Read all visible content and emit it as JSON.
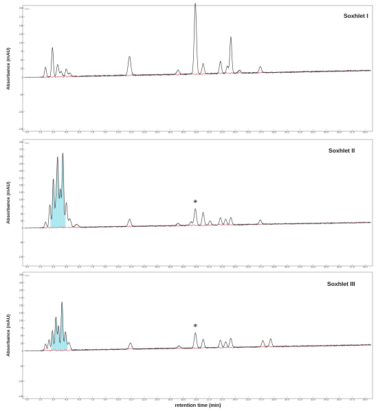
{
  "figure": {
    "xlabel": "retention time  (min)",
    "marker_symbol": "*"
  },
  "chart_data": [
    {
      "type": "line",
      "title": "Soxhlet I",
      "ylabel": "Absorbance (mAU)",
      "corner_label": "mAU",
      "xlim": [
        0,
        40
      ],
      "ylim": [
        -150,
        200
      ],
      "x_ticks": [
        "0.0",
        "1.5",
        "3.0",
        "4.5",
        "6.0",
        "7.5",
        "9.0",
        "10.5",
        "12.0",
        "13.5",
        "15.0",
        "16.5",
        "18.0",
        "19.5",
        "21.0",
        "22.5",
        "24.0",
        "25.5",
        "27.0",
        "28.5",
        "30.0",
        "31.5",
        "33.0",
        "34.5",
        "36.0",
        "37.5",
        "39.0"
      ],
      "y_ticks": [
        {
          "v": -150,
          "label": "-150"
        },
        {
          "v": -100,
          "label": "-100"
        },
        {
          "v": -50,
          "label": "-50"
        },
        {
          "v": 0,
          "label": "0"
        },
        {
          "v": 25,
          "label": "25"
        },
        {
          "v": 50,
          "label": "50"
        },
        {
          "v": 75,
          "label": "75"
        },
        {
          "v": 100,
          "label": "100"
        },
        {
          "v": 125,
          "label": "125"
        },
        {
          "v": 150,
          "label": "150"
        },
        {
          "v": 175,
          "label": "175"
        },
        {
          "v": 200,
          "label": "200"
        }
      ],
      "baseline": {
        "start": 0,
        "end": 20
      },
      "peaks": [
        {
          "rt": 2.4,
          "height": 28,
          "width": 0.1
        },
        {
          "rt": 3.2,
          "height": 85,
          "width": 0.1
        },
        {
          "rt": 3.8,
          "height": 35,
          "width": 0.12
        },
        {
          "rt": 4.2,
          "height": 15,
          "width": 0.12
        },
        {
          "rt": 4.8,
          "height": 22,
          "width": 0.12
        },
        {
          "rt": 5.2,
          "height": 10,
          "width": 0.12
        },
        {
          "rt": 12.1,
          "height": 55,
          "width": 0.15
        },
        {
          "rt": 17.7,
          "height": 12,
          "width": 0.15
        },
        {
          "rt": 19.7,
          "height": 205,
          "width": 0.13
        },
        {
          "rt": 20.6,
          "height": 30,
          "width": 0.12
        },
        {
          "rt": 22.6,
          "height": 35,
          "width": 0.12
        },
        {
          "rt": 23.4,
          "height": 20,
          "width": 0.12
        },
        {
          "rt": 23.8,
          "height": 105,
          "width": 0.11
        },
        {
          "rt": 24.8,
          "height": 8,
          "width": 0.15
        },
        {
          "rt": 27.2,
          "height": 18,
          "width": 0.13
        }
      ],
      "starred_rt": 19.7
    },
    {
      "type": "line",
      "title": "Soxhlet II",
      "ylabel": "Absorbance (mAU)",
      "corner_label": "mAU",
      "xlim": [
        0,
        40
      ],
      "ylim": [
        -125,
        300
      ],
      "x_ticks": [
        "0.0",
        "1.5",
        "3.0",
        "4.5",
        "6.0",
        "7.5",
        "9.0",
        "10.5",
        "12.0",
        "13.5",
        "15.0",
        "16.5",
        "18.0",
        "19.5",
        "21.0",
        "22.5",
        "24.0",
        "25.5",
        "27.0",
        "28.5",
        "30.0",
        "31.5",
        "33.0",
        "34.5",
        "36.0",
        "37.5",
        "39.0"
      ],
      "y_ticks": [
        {
          "v": -100,
          "label": "-100"
        },
        {
          "v": -50,
          "label": "-50"
        },
        {
          "v": 0,
          "label": "0"
        },
        {
          "v": 25,
          "label": "25"
        },
        {
          "v": 50,
          "label": "50"
        },
        {
          "v": 75,
          "label": "75"
        },
        {
          "v": 100,
          "label": "100"
        },
        {
          "v": 125,
          "label": "125"
        },
        {
          "v": 150,
          "label": "150"
        },
        {
          "v": 175,
          "label": "175"
        },
        {
          "v": 200,
          "label": "200"
        },
        {
          "v": 225,
          "label": "225"
        },
        {
          "v": 250,
          "label": "250"
        },
        {
          "v": 275,
          "label": "275"
        },
        {
          "v": 300,
          "label": "300"
        }
      ],
      "baseline": {
        "start": 0,
        "end": 20
      },
      "peaks": [
        {
          "rt": 2.4,
          "height": 20,
          "width": 0.1
        },
        {
          "rt": 2.9,
          "height": 80,
          "width": 0.1
        },
        {
          "rt": 3.3,
          "height": 170,
          "width": 0.1
        },
        {
          "rt": 3.6,
          "height": 80,
          "width": 0.09
        },
        {
          "rt": 3.8,
          "height": 240,
          "width": 0.1
        },
        {
          "rt": 4.1,
          "height": 130,
          "width": 0.09
        },
        {
          "rt": 4.4,
          "height": 260,
          "width": 0.1
        },
        {
          "rt": 4.8,
          "height": 85,
          "width": 0.11
        },
        {
          "rt": 5.2,
          "height": 30,
          "width": 0.15
        },
        {
          "rt": 6.0,
          "height": 10,
          "width": 0.2
        },
        {
          "rt": 12.1,
          "height": 25,
          "width": 0.15
        },
        {
          "rt": 17.7,
          "height": 8,
          "width": 0.15
        },
        {
          "rt": 19.2,
          "height": 12,
          "width": 0.15
        },
        {
          "rt": 19.7,
          "height": 58,
          "width": 0.13
        },
        {
          "rt": 20.6,
          "height": 45,
          "width": 0.12
        },
        {
          "rt": 21.4,
          "height": 15,
          "width": 0.12
        },
        {
          "rt": 22.6,
          "height": 25,
          "width": 0.12
        },
        {
          "rt": 23.2,
          "height": 20,
          "width": 0.12
        },
        {
          "rt": 23.8,
          "height": 25,
          "width": 0.12
        },
        {
          "rt": 27.2,
          "height": 15,
          "width": 0.13
        }
      ],
      "shaded_region": [
        3.0,
        4.7
      ],
      "starred_rt": 19.7
    },
    {
      "type": "line",
      "title": "Soxhlet III",
      "ylabel": "Absorbance (mAU)",
      "corner_label": "mAU",
      "xlim": [
        0,
        40
      ],
      "ylim": [
        -150,
        250
      ],
      "x_ticks": [
        "0.0",
        "1.5",
        "3.0",
        "4.5",
        "6.0",
        "7.5",
        "9.0",
        "10.5",
        "12.0",
        "13.5",
        "15.0",
        "16.5",
        "18.0",
        "19.5",
        "21.0",
        "22.5",
        "24.0",
        "25.5",
        "27.0",
        "28.5",
        "30.0",
        "31.5",
        "33.0",
        "34.5",
        "36.0",
        "37.5",
        "39.0"
      ],
      "y_ticks": [
        {
          "v": -150,
          "label": "-150"
        },
        {
          "v": -100,
          "label": "-100"
        },
        {
          "v": -50,
          "label": "-50"
        },
        {
          "v": 0,
          "label": "0"
        },
        {
          "v": 25,
          "label": "25"
        },
        {
          "v": 50,
          "label": "50"
        },
        {
          "v": 75,
          "label": "75"
        },
        {
          "v": 100,
          "label": "100"
        },
        {
          "v": 125,
          "label": "125"
        },
        {
          "v": 150,
          "label": "150"
        },
        {
          "v": 175,
          "label": "175"
        },
        {
          "v": 200,
          "label": "200"
        },
        {
          "v": 225,
          "label": "225"
        },
        {
          "v": 250,
          "label": "250"
        }
      ],
      "baseline": {
        "start": 0,
        "end": 20
      },
      "peaks": [
        {
          "rt": 2.4,
          "height": 22,
          "width": 0.1
        },
        {
          "rt": 2.8,
          "height": 35,
          "width": 0.1
        },
        {
          "rt": 3.2,
          "height": 65,
          "width": 0.1
        },
        {
          "rt": 3.6,
          "height": 110,
          "width": 0.1
        },
        {
          "rt": 3.9,
          "height": 80,
          "width": 0.09
        },
        {
          "rt": 4.3,
          "height": 160,
          "width": 0.1
        },
        {
          "rt": 4.7,
          "height": 60,
          "width": 0.11
        },
        {
          "rt": 5.1,
          "height": 25,
          "width": 0.15
        },
        {
          "rt": 12.2,
          "height": 20,
          "width": 0.15
        },
        {
          "rt": 17.8,
          "height": 8,
          "width": 0.15
        },
        {
          "rt": 19.7,
          "height": 50,
          "width": 0.13
        },
        {
          "rt": 20.6,
          "height": 28,
          "width": 0.12
        },
        {
          "rt": 22.6,
          "height": 25,
          "width": 0.12
        },
        {
          "rt": 23.2,
          "height": 18,
          "width": 0.12
        },
        {
          "rt": 23.8,
          "height": 30,
          "width": 0.12
        },
        {
          "rt": 27.5,
          "height": 20,
          "width": 0.13
        },
        {
          "rt": 28.4,
          "height": 25,
          "width": 0.13
        }
      ],
      "shaded_region": [
        3.1,
        4.9
      ],
      "starred_rt": 19.7
    }
  ]
}
